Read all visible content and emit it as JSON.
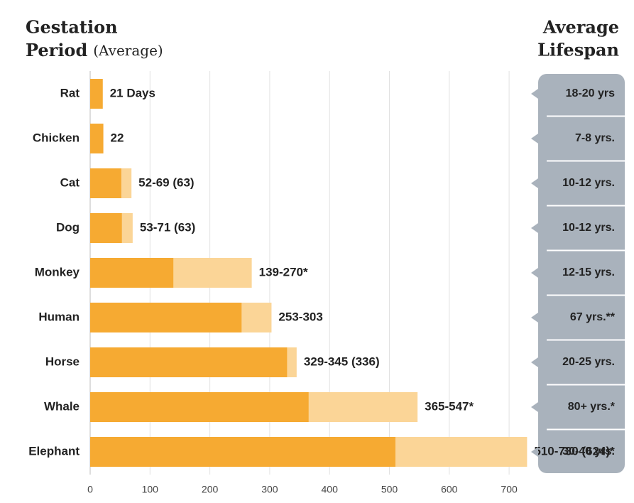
{
  "chart_data": {
    "type": "range-bar",
    "title_line1": "Gestation",
    "title_line2": "Period",
    "subtitle": "(Average)",
    "right_title_line1": "Average",
    "right_title_line2": "Lifespan",
    "categories": [
      "Rat",
      "Chicken",
      "Cat",
      "Dog",
      "Monkey",
      "Human",
      "Horse",
      "Whale",
      "Elephant"
    ],
    "min_values": [
      21,
      22,
      52,
      53,
      139,
      253,
      329,
      365,
      510
    ],
    "max_values": [
      21,
      22,
      69,
      71,
      270,
      303,
      345,
      547,
      730
    ],
    "value_labels": [
      "21 Days",
      "22",
      "52-69 (63)",
      "53-71 (63)",
      "139-270*",
      "253-303",
      "329-345 (336)",
      "365-547*",
      "510-730 (624)*"
    ],
    "min_color": "#f6aa32",
    "max_color": "#fbd597",
    "lifespans": [
      "18-20 yrs",
      "7-8 yrs.",
      "10-12 yrs.",
      "10-12 yrs.",
      "12-15 yrs.",
      "67 yrs.**",
      "20-25 yrs.",
      "80+ yrs.*",
      "30-40 yrs."
    ],
    "xlim": [
      0,
      730
    ],
    "xticks": [
      0,
      100,
      200,
      300,
      400,
      500,
      600,
      700
    ],
    "grid": true
  }
}
